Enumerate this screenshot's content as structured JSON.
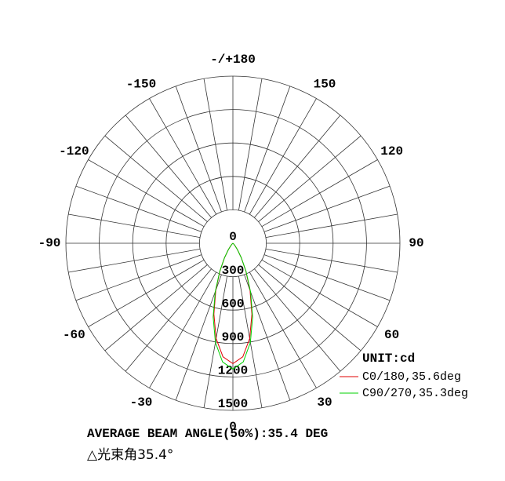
{
  "chart_data": {
    "type": "polar",
    "x": [
      -90,
      -85,
      -80,
      -75,
      -70,
      -65,
      -60,
      -55,
      -50,
      -45,
      -40,
      -35,
      -30,
      -25,
      -20,
      -15,
      -10,
      -5,
      0,
      5,
      10,
      15,
      20,
      25,
      30,
      35,
      40,
      45,
      50,
      55,
      60,
      65,
      70,
      75,
      80,
      85,
      90
    ],
    "series": [
      {
        "name": "C0/180,35.6deg",
        "color": "#e00000",
        "values": [
          0,
          0,
          0,
          0,
          0,
          0,
          0,
          0,
          5,
          12,
          33,
          74,
          151,
          275,
          450,
          659,
          868,
          1023,
          1080,
          1023,
          868,
          659,
          450,
          275,
          151,
          74,
          33,
          12,
          5,
          0,
          0,
          0,
          0,
          0,
          0,
          0,
          0
        ]
      },
      {
        "name": "C90/270,35.3deg",
        "color": "#00d000",
        "values": [
          0,
          0,
          0,
          0,
          0,
          0,
          0,
          0,
          5,
          12,
          32,
          74,
          153,
          281,
          464,
          685,
          904,
          1069,
          1130,
          1069,
          904,
          685,
          464,
          281,
          153,
          74,
          32,
          12,
          5,
          0,
          0,
          0,
          0,
          0,
          0,
          0,
          0
        ]
      }
    ],
    "rlim": [
      0,
      1500
    ],
    "rticks": [
      0,
      300,
      600,
      900,
      1200,
      1500
    ],
    "angle_ticks": [
      {
        "value": 180,
        "label": "-/+180"
      },
      150,
      120,
      90,
      60,
      30,
      0,
      -30,
      -60,
      -90,
      -120,
      -150
    ],
    "unit_label": "UNIT:cd",
    "annotations": [
      "AVERAGE BEAM ANGLE(50%):35.4 DEG",
      "△光束角35.4°"
    ],
    "grid": true
  }
}
